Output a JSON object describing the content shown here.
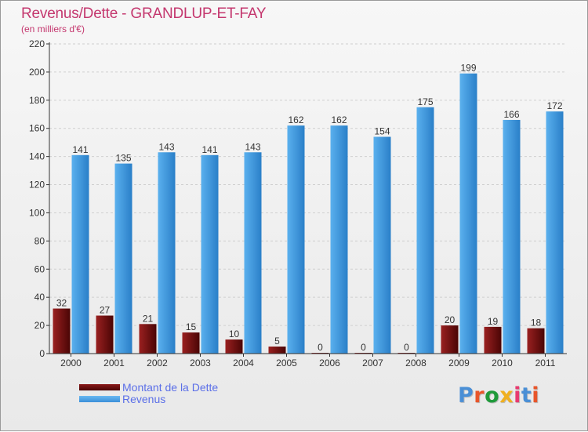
{
  "header": {
    "title": "Revenus/Dette - GRANDLUP-ET-FAY",
    "subtitle": "(en milliers d'€)"
  },
  "brand": {
    "text": "Proxiti",
    "colors": [
      "#4a8fd6",
      "#e8552a",
      "#1f9a3a",
      "#f0b020",
      "#e83a70",
      "#4a8fd6",
      "#e8552a"
    ]
  },
  "chart_data": {
    "type": "bar",
    "categories": [
      "2000",
      "2001",
      "2002",
      "2003",
      "2004",
      "2005",
      "2006",
      "2007",
      "2008",
      "2009",
      "2010",
      "2011"
    ],
    "series": [
      {
        "name": "Montant de la Dette",
        "color": "#7a1212",
        "values": [
          32,
          27,
          21,
          15,
          10,
          5,
          0,
          0,
          0,
          20,
          19,
          18
        ]
      },
      {
        "name": "Revenus",
        "color": "#4da3e6",
        "values": [
          141,
          135,
          143,
          141,
          143,
          162,
          162,
          154,
          175,
          199,
          166,
          172
        ]
      }
    ],
    "ylim": [
      0,
      220
    ],
    "yticks": [
      0,
      20,
      40,
      60,
      80,
      100,
      120,
      140,
      160,
      180,
      200,
      220
    ],
    "grid": true,
    "legend": "bottom-left"
  }
}
